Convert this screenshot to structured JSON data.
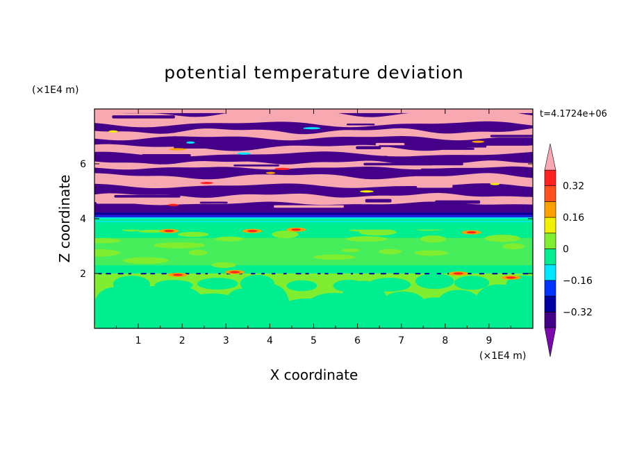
{
  "chart_data": {
    "type": "heatmap",
    "title": "potential temperature deviation",
    "xlabel": "X coordinate",
    "ylabel": "Z coordinate",
    "x_unit": "(×1E4 m)",
    "y_unit": "(×1E4 m)",
    "time_label": "t=4.1724e+06",
    "xlim": [
      0,
      10
    ],
    "ylim": [
      0,
      8
    ],
    "x_ticks": [
      1,
      2,
      3,
      4,
      5,
      6,
      7,
      8,
      9
    ],
    "y_ticks": [
      2,
      4,
      6
    ],
    "colorbar": {
      "levels": [
        -0.4,
        -0.32,
        -0.24,
        -0.16,
        -0.08,
        0,
        0.08,
        0.16,
        0.24,
        0.32,
        0.4
      ],
      "labels": [
        "0.32",
        "0.16",
        "0",
        "−0.16",
        "−0.32"
      ],
      "label_values": [
        0.32,
        0.16,
        0,
        -0.16,
        -0.32
      ],
      "colors": [
        "#7a0aaa",
        "#440088",
        "#0000a0",
        "#0033ff",
        "#00e8ff",
        "#00ee90",
        "#80ee30",
        "#f0f000",
        "#ffa000",
        "#ff5020",
        "#ff2020",
        "#f8a8b0"
      ]
    },
    "layers": [
      {
        "from": 0,
        "to": 2.0,
        "field": "green-light-green convection cells"
      },
      {
        "from": 2.0,
        "to": 4.0,
        "field": "green with light-green patches"
      },
      {
        "from": 4.0,
        "to": 8.0,
        "field": "alternating purple and pink bands"
      }
    ]
  }
}
